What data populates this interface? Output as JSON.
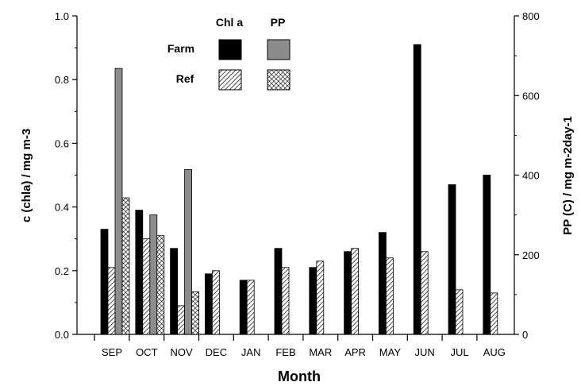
{
  "chart_data": {
    "type": "bar",
    "categories": [
      "SEP",
      "OCT",
      "NOV",
      "DEC",
      "JAN",
      "FEB",
      "MAR",
      "APR",
      "MAY",
      "JUN",
      "JUL",
      "AUG"
    ],
    "xlabel": "Month",
    "ylabel": "c (chla) / mg m-3",
    "ylabel_right": "PP (C) / mg m-2day-1",
    "ylim": [
      0,
      1.0
    ],
    "ylim_right": [
      0,
      800
    ],
    "yticks": [
      "0.0",
      "0.2",
      "0.4",
      "0.6",
      "0.8",
      "1.0"
    ],
    "yticks_right": [
      "0",
      "200",
      "400",
      "600",
      "800"
    ],
    "grid": false,
    "legend": {
      "position": "top-left",
      "col_headers": [
        "Chl a",
        "PP"
      ],
      "row_headers": [
        "Farm",
        "Ref"
      ]
    },
    "series": [
      {
        "axis": "left",
        "fill": "black",
        "values": [
          0.33,
          0.39,
          0.27,
          0.19,
          0.17,
          0.27,
          0.21,
          0.26,
          0.32,
          0.91,
          0.47,
          0.5
        ]
      },
      {
        "axis": "left",
        "fill": "hatch",
        "values": [
          0.21,
          0.3,
          0.09,
          0.2,
          0.17,
          0.21,
          0.23,
          0.27,
          0.24,
          0.26,
          0.14,
          0.13
        ]
      },
      {
        "axis": "right",
        "fill": "gray",
        "values": [
          668,
          300,
          414,
          null,
          null,
          null,
          null,
          null,
          null,
          null,
          null,
          null
        ]
      },
      {
        "axis": "right",
        "fill": "crosshatch",
        "values": [
          343,
          248,
          107,
          null,
          null,
          null,
          null,
          null,
          null,
          null,
          null,
          null
        ]
      }
    ]
  }
}
